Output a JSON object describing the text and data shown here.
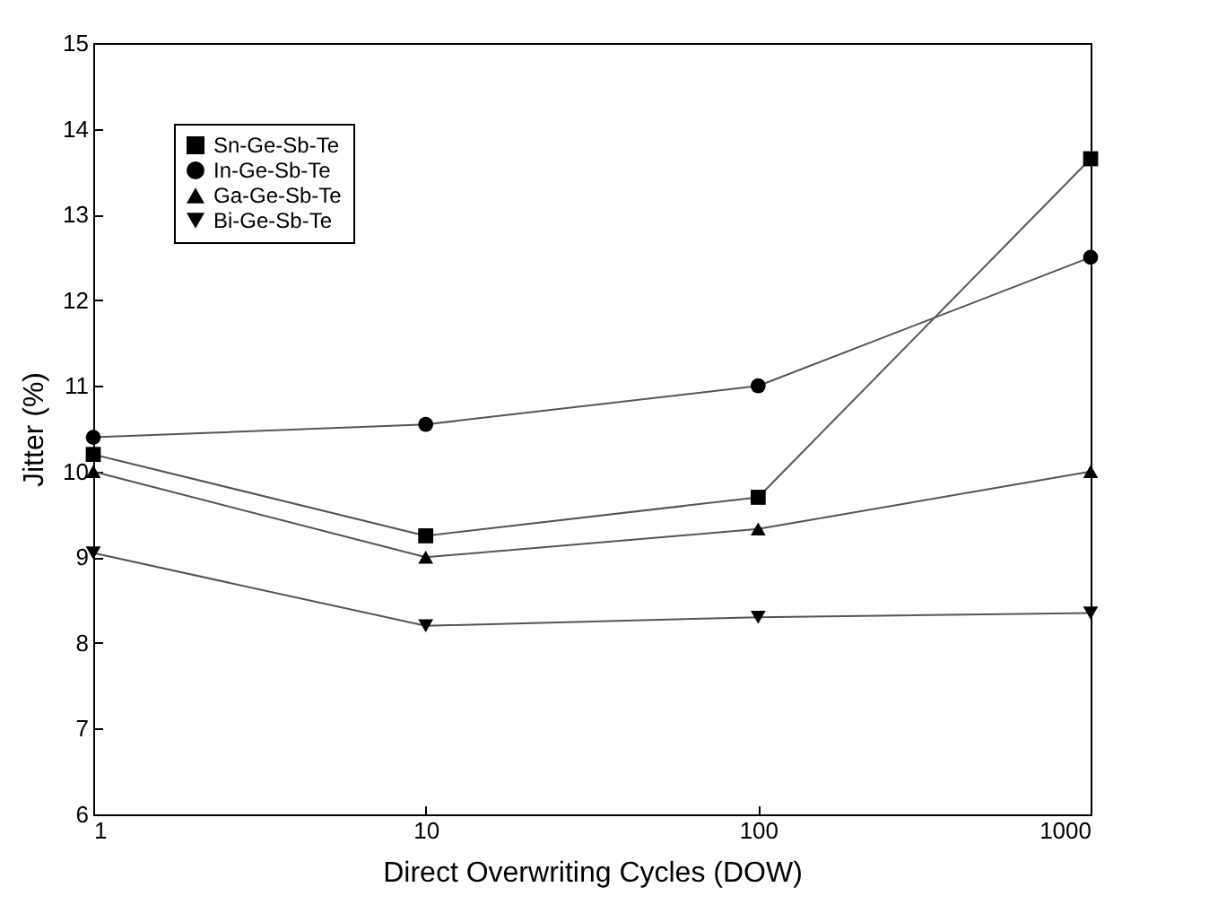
{
  "chart_data": {
    "type": "line",
    "xlabel": "Direct Overwriting Cycles (DOW)",
    "ylabel": "Jitter (%)",
    "x": [
      1,
      10,
      100,
      1000
    ],
    "log": "x",
    "xlim": [
      1,
      1000
    ],
    "xticks": [
      1,
      10,
      100,
      1000
    ],
    "ylim": [
      6,
      15
    ],
    "yticks": [
      6,
      7,
      8,
      9,
      10,
      11,
      12,
      13,
      14,
      15
    ],
    "legend": "top left",
    "grid": false,
    "series": [
      {
        "name": "Sn-Ge-Sb-Te",
        "color": "#000000",
        "marker": "square",
        "values": [
          10.2,
          9.25,
          9.7,
          13.65
        ]
      },
      {
        "name": "In-Ge-Sb-Te",
        "color": "#000000",
        "marker": "circle",
        "values": [
          10.4,
          10.55,
          11.0,
          12.5
        ]
      },
      {
        "name": "Ga-Ge-Sb-Te",
        "color": "#000000",
        "marker": "triangle",
        "values": [
          10.0,
          9.0,
          9.33,
          10.0
        ]
      },
      {
        "name": "Bi-Ge-Sb-Te",
        "color": "#000000",
        "marker": "triangle-down",
        "values": [
          9.05,
          8.2,
          8.3,
          8.35
        ]
      }
    ]
  }
}
